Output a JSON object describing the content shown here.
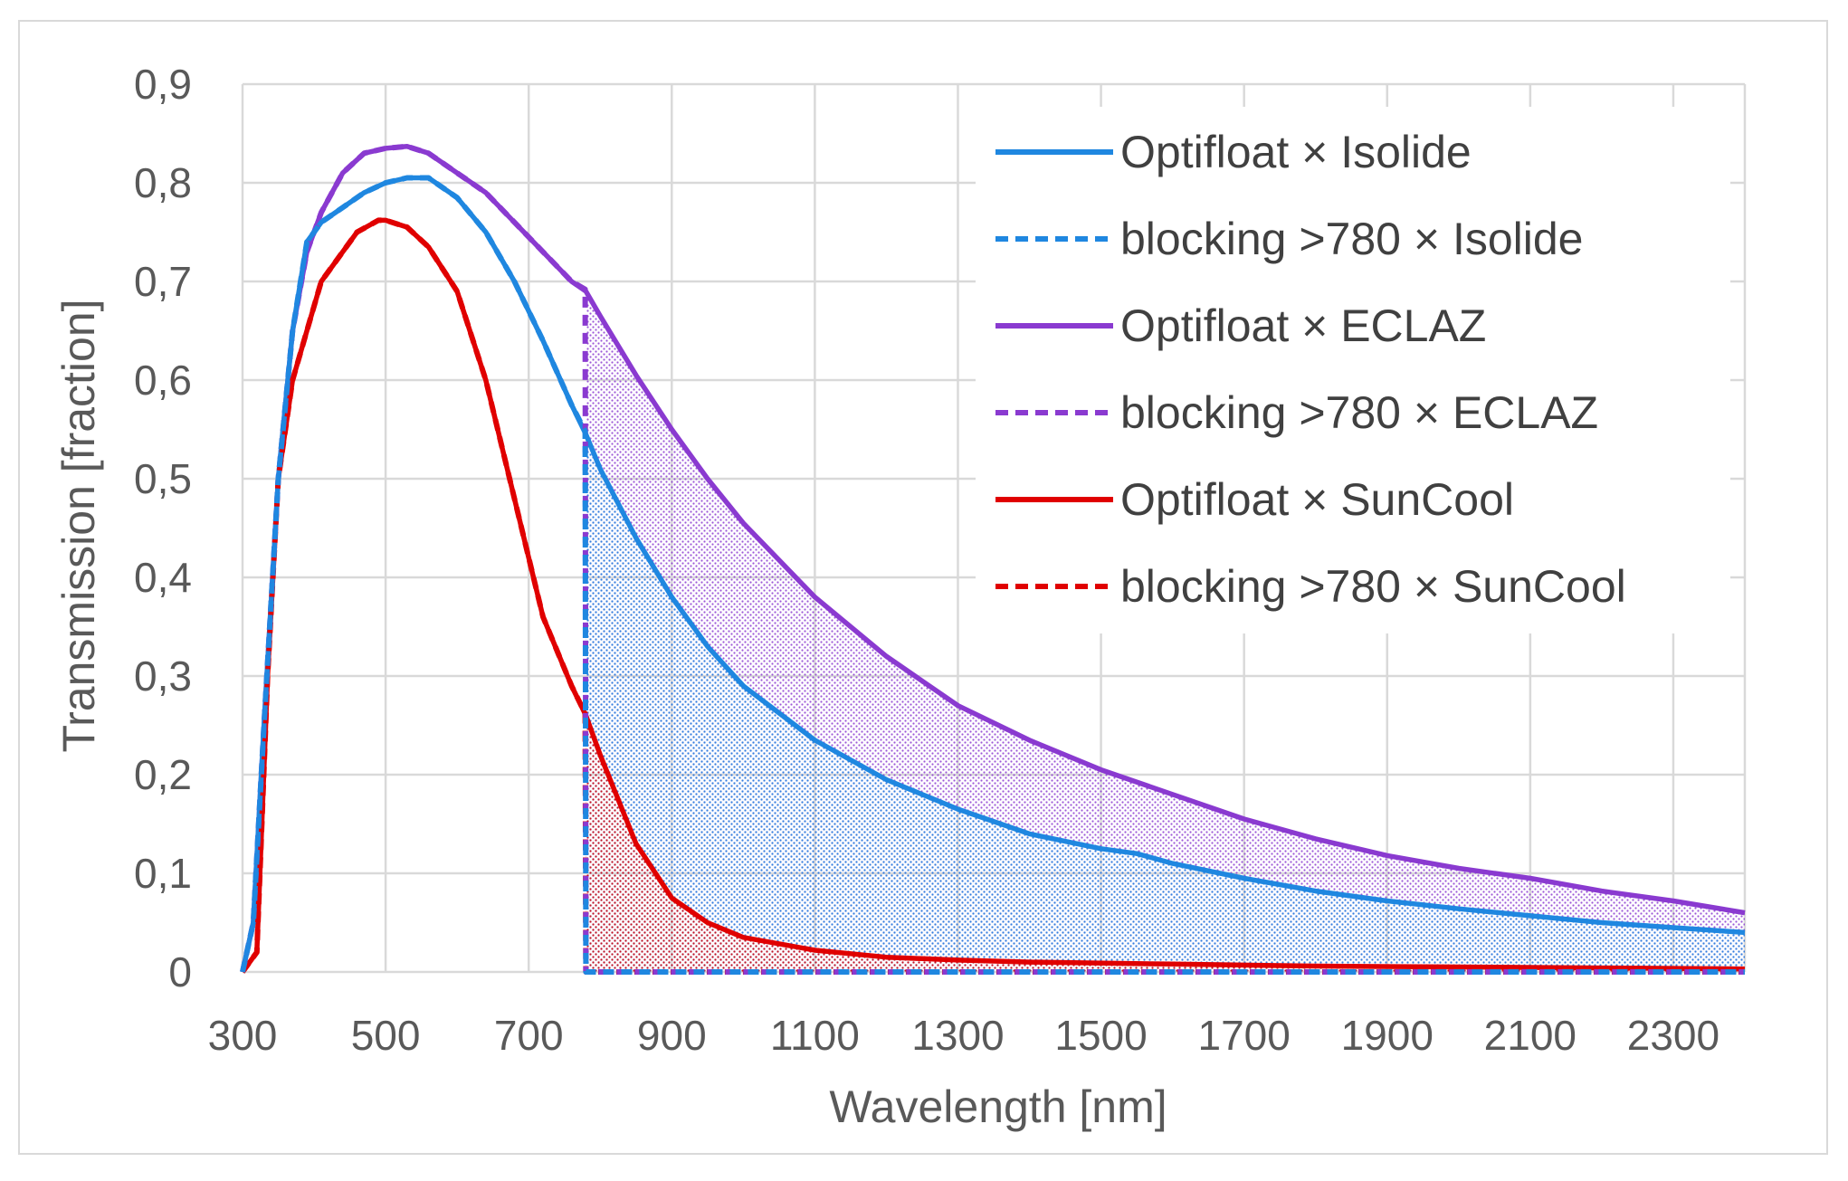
{
  "chart_data": {
    "type": "line",
    "title": "",
    "xlabel": "Wavelength [nm]",
    "ylabel": "Transmission [fraction]",
    "xlim": [
      300,
      2400
    ],
    "ylim": [
      0,
      0.9
    ],
    "x_ticks": [
      "300",
      "500",
      "700",
      "900",
      "1100",
      "1300",
      "1500",
      "1700",
      "1900",
      "2100",
      "2300"
    ],
    "x_tick_values": [
      300,
      500,
      700,
      900,
      1100,
      1300,
      1500,
      1700,
      1900,
      2100,
      2300
    ],
    "y_ticks": [
      "0",
      "0,1",
      "0,2",
      "0,3",
      "0,4",
      "0,5",
      "0,6",
      "0,7",
      "0,8",
      "0,9"
    ],
    "y_tick_values": [
      0,
      0.1,
      0.2,
      0.3,
      0.4,
      0.5,
      0.6,
      0.7,
      0.8,
      0.9
    ],
    "grid": true,
    "legend_position": "top-right",
    "blocking_cutoff_nm": 780,
    "series": [
      {
        "name": "Optifloat × Isolide",
        "color": "#1f87e0",
        "style": "solid",
        "x": [
          300,
          315,
          330,
          350,
          370,
          390,
          410,
          440,
          470,
          500,
          530,
          560,
          600,
          640,
          680,
          720,
          760,
          780,
          800,
          850,
          900,
          950,
          1000,
          1100,
          1200,
          1300,
          1400,
          1500,
          1550,
          1600,
          1700,
          1800,
          1900,
          2000,
          2100,
          2200,
          2300,
          2400
        ],
        "y": [
          0,
          0.05,
          0.25,
          0.5,
          0.65,
          0.74,
          0.76,
          0.775,
          0.79,
          0.8,
          0.805,
          0.805,
          0.785,
          0.75,
          0.7,
          0.64,
          0.575,
          0.545,
          0.51,
          0.44,
          0.38,
          0.33,
          0.29,
          0.235,
          0.195,
          0.165,
          0.14,
          0.125,
          0.12,
          0.11,
          0.095,
          0.082,
          0.072,
          0.064,
          0.057,
          0.05,
          0.045,
          0.04
        ]
      },
      {
        "name": "blocking >780 × Isolide",
        "color": "#1f87e0",
        "style": "dashed",
        "x": [
          300,
          315,
          330,
          350,
          370,
          390,
          410,
          440,
          470,
          500,
          530,
          560,
          600,
          640,
          680,
          720,
          760,
          779,
          780,
          2400
        ],
        "y": [
          0,
          0.05,
          0.25,
          0.5,
          0.65,
          0.74,
          0.76,
          0.775,
          0.79,
          0.8,
          0.805,
          0.805,
          0.785,
          0.75,
          0.7,
          0.64,
          0.575,
          0.548,
          0,
          0
        ]
      },
      {
        "name": "Optifloat × ECLAZ",
        "color": "#8a3ad0",
        "style": "solid",
        "x": [
          300,
          315,
          330,
          350,
          370,
          390,
          410,
          440,
          470,
          500,
          530,
          560,
          600,
          640,
          680,
          720,
          760,
          780,
          800,
          850,
          900,
          950,
          1000,
          1100,
          1200,
          1300,
          1400,
          1500,
          1600,
          1700,
          1800,
          1900,
          2000,
          2100,
          2200,
          2300,
          2400
        ],
        "y": [
          0,
          0.05,
          0.25,
          0.5,
          0.65,
          0.73,
          0.77,
          0.81,
          0.83,
          0.835,
          0.837,
          0.83,
          0.81,
          0.79,
          0.76,
          0.73,
          0.7,
          0.69,
          0.665,
          0.605,
          0.55,
          0.5,
          0.455,
          0.38,
          0.32,
          0.27,
          0.235,
          0.205,
          0.18,
          0.155,
          0.135,
          0.118,
          0.105,
          0.095,
          0.082,
          0.072,
          0.06
        ]
      },
      {
        "name": "blocking >780 × ECLAZ",
        "color": "#8a3ad0",
        "style": "dashed",
        "x": [
          300,
          315,
          330,
          350,
          370,
          390,
          410,
          440,
          470,
          500,
          530,
          560,
          600,
          640,
          680,
          720,
          760,
          779,
          780,
          2400
        ],
        "y": [
          0,
          0.05,
          0.25,
          0.5,
          0.65,
          0.73,
          0.77,
          0.81,
          0.83,
          0.835,
          0.837,
          0.83,
          0.81,
          0.79,
          0.76,
          0.73,
          0.7,
          0.692,
          0,
          0
        ]
      },
      {
        "name": "Optifloat × SunCool",
        "color": "#e00000",
        "style": "solid",
        "x": [
          300,
          320,
          335,
          350,
          370,
          390,
          410,
          430,
          460,
          490,
          500,
          530,
          560,
          600,
          640,
          680,
          720,
          760,
          780,
          800,
          850,
          900,
          950,
          1000,
          1100,
          1200,
          1300,
          1400,
          1600,
          1800,
          2000,
          2200,
          2400
        ],
        "y": [
          0,
          0.02,
          0.3,
          0.5,
          0.6,
          0.65,
          0.7,
          0.72,
          0.75,
          0.762,
          0.762,
          0.755,
          0.735,
          0.69,
          0.6,
          0.48,
          0.36,
          0.29,
          0.26,
          0.22,
          0.13,
          0.075,
          0.05,
          0.035,
          0.022,
          0.015,
          0.012,
          0.01,
          0.008,
          0.006,
          0.005,
          0.004,
          0.003
        ]
      },
      {
        "name": "blocking >780 × SunCool",
        "color": "#e00000",
        "style": "dashed",
        "x": [
          300,
          320,
          335,
          350,
          370,
          390,
          410,
          430,
          460,
          490,
          500,
          530,
          560,
          600,
          640,
          680,
          720,
          760,
          779,
          780,
          2400
        ],
        "y": [
          0,
          0.02,
          0.3,
          0.5,
          0.6,
          0.65,
          0.7,
          0.72,
          0.75,
          0.762,
          0.762,
          0.755,
          0.735,
          0.69,
          0.6,
          0.48,
          0.36,
          0.29,
          0.262,
          0,
          0
        ]
      }
    ]
  }
}
